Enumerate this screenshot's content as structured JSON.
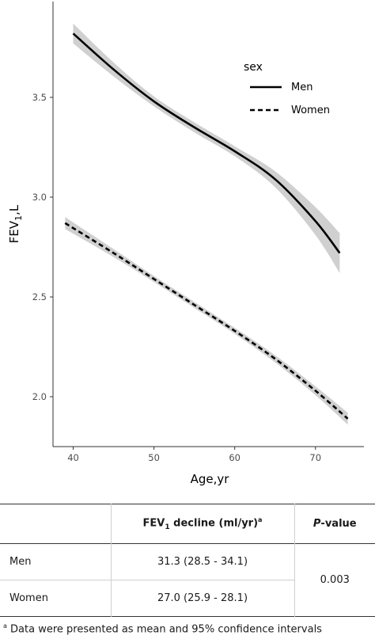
{
  "chart_data": {
    "type": "line",
    "xlabel": "Age,yr",
    "ylabel_main": "FEV",
    "ylabel_sub": "1",
    "ylabel_suffix": ",L",
    "xlim": [
      37.5,
      76
    ],
    "ylim": [
      1.75,
      3.98
    ],
    "xticks": [
      40,
      50,
      60,
      70
    ],
    "yticks": [
      2.0,
      2.5,
      3.0,
      3.5
    ],
    "grid": false,
    "legend": {
      "title": "sex",
      "position": "top-right inside"
    },
    "series": [
      {
        "name": "Men",
        "line_style": "solid",
        "points": [
          [
            40,
            3.82
          ],
          [
            45,
            3.64
          ],
          [
            50,
            3.48
          ],
          [
            55,
            3.35
          ],
          [
            60,
            3.23
          ],
          [
            65,
            3.09
          ],
          [
            70,
            2.88
          ],
          [
            73,
            2.72
          ]
        ],
        "ci_width": [
          0.05,
          0.035,
          0.025,
          0.025,
          0.025,
          0.04,
          0.07,
          0.1
        ]
      },
      {
        "name": "Women",
        "line_style": "dashed",
        "points": [
          [
            39,
            2.87
          ],
          [
            45,
            2.72
          ],
          [
            50,
            2.59
          ],
          [
            55,
            2.46
          ],
          [
            60,
            2.33
          ],
          [
            65,
            2.19
          ],
          [
            70,
            2.03
          ],
          [
            74,
            1.89
          ]
        ],
        "ci_width": [
          0.03,
          0.02,
          0.015,
          0.015,
          0.015,
          0.018,
          0.022,
          0.03
        ]
      }
    ],
    "colors": {
      "line": "#000000",
      "ribbon": "#c8c8c8",
      "axis": "#333333",
      "tick_text": "#4d4d4d"
    }
  },
  "table": {
    "header": {
      "col1": "",
      "col2_main": "FEV",
      "col2_sub": "1",
      "col2_rest": " decline (ml/yr)",
      "col2_sup": "a",
      "col3_italic": "P",
      "col3_rest": "-value"
    },
    "rows": [
      {
        "label": "Men",
        "value": "31.3 (28.5 - 34.1)"
      },
      {
        "label": "Women",
        "value": "27.0 (25.9 - 28.1)"
      }
    ],
    "p_value": "0.003"
  },
  "footnote": {
    "sup": "a",
    "text": " Data were presented as mean and 95% confidence intervals"
  }
}
